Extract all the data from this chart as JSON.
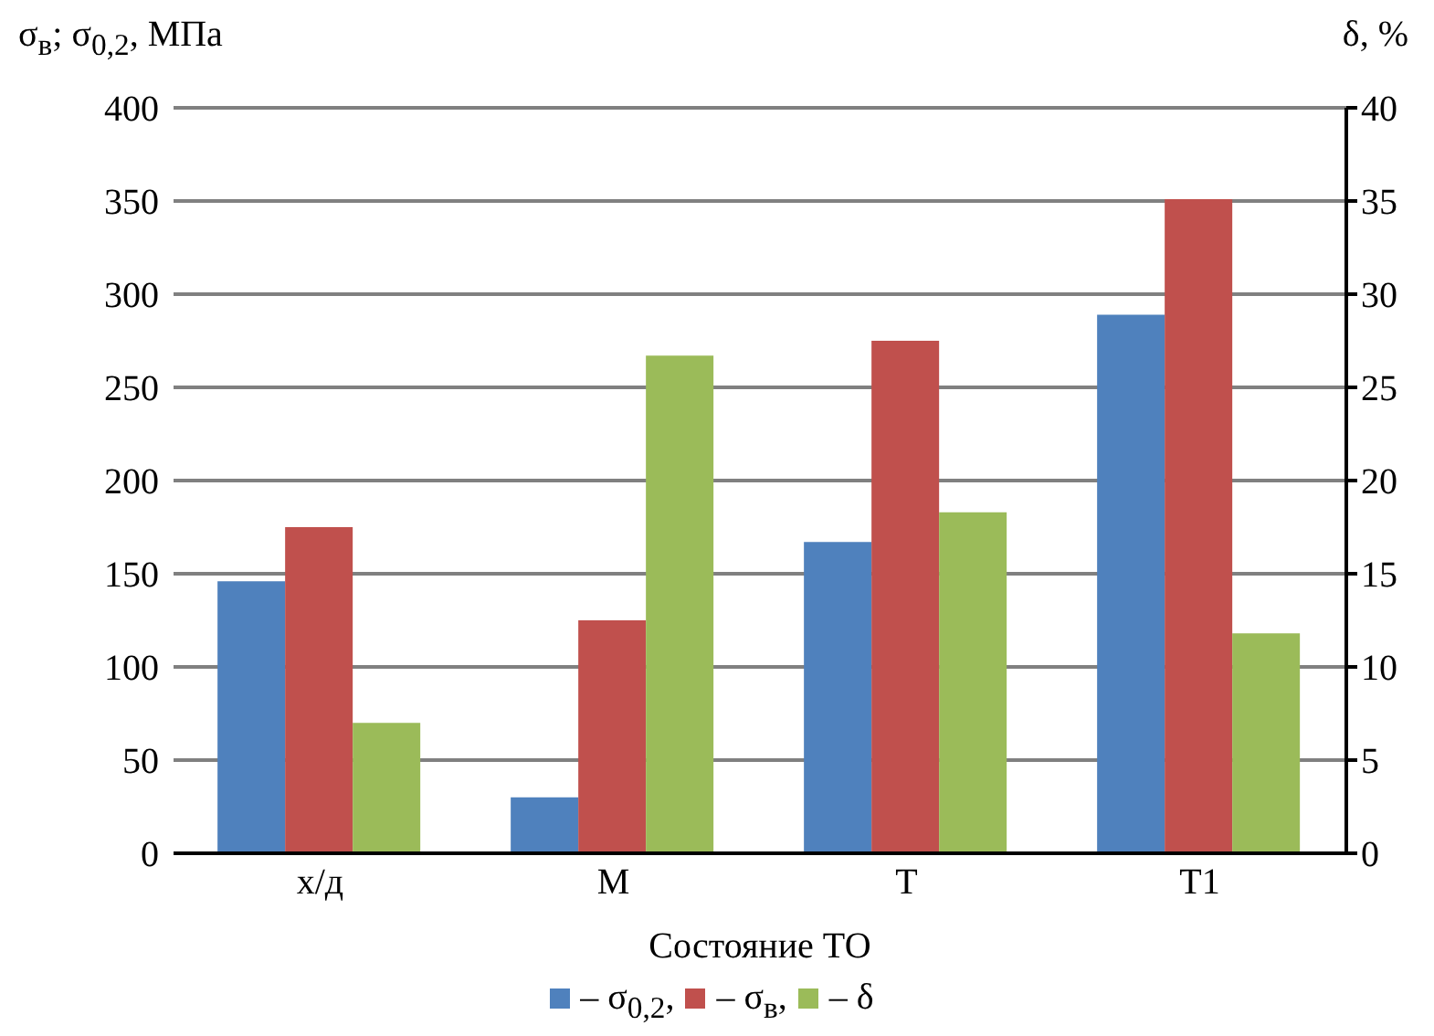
{
  "chart_data": {
    "type": "bar",
    "xlabel": "Состояние ТО",
    "ylabel": "σ$_{в}$; σ$_{0,2}$, МПа",
    "y2label": "δ, %",
    "categories": [
      "х/д",
      "М",
      "Т",
      "Т1"
    ],
    "series": [
      {
        "name": "– σ$_{0,2}$,",
        "color": "#4f81bd",
        "values": [
          146,
          30,
          167,
          289
        ]
      },
      {
        "name": "– σ$_{в}$,",
        "color": "#c0504d",
        "values": [
          175,
          125,
          275,
          351
        ]
      },
      {
        "name": "– δ",
        "color": "#9bbb59",
        "axis": "y2",
        "values": [
          7,
          26.7,
          18.3,
          11.8
        ]
      }
    ],
    "ylim": [
      0,
      400
    ],
    "yticks": [
      0,
      50,
      100,
      150,
      200,
      250,
      300,
      350,
      400
    ],
    "y2lim": [
      0,
      40
    ],
    "y2ticks": [
      0,
      5,
      10,
      15,
      20,
      25,
      30,
      35,
      40
    ],
    "grid": "y",
    "legend": "bottom"
  }
}
